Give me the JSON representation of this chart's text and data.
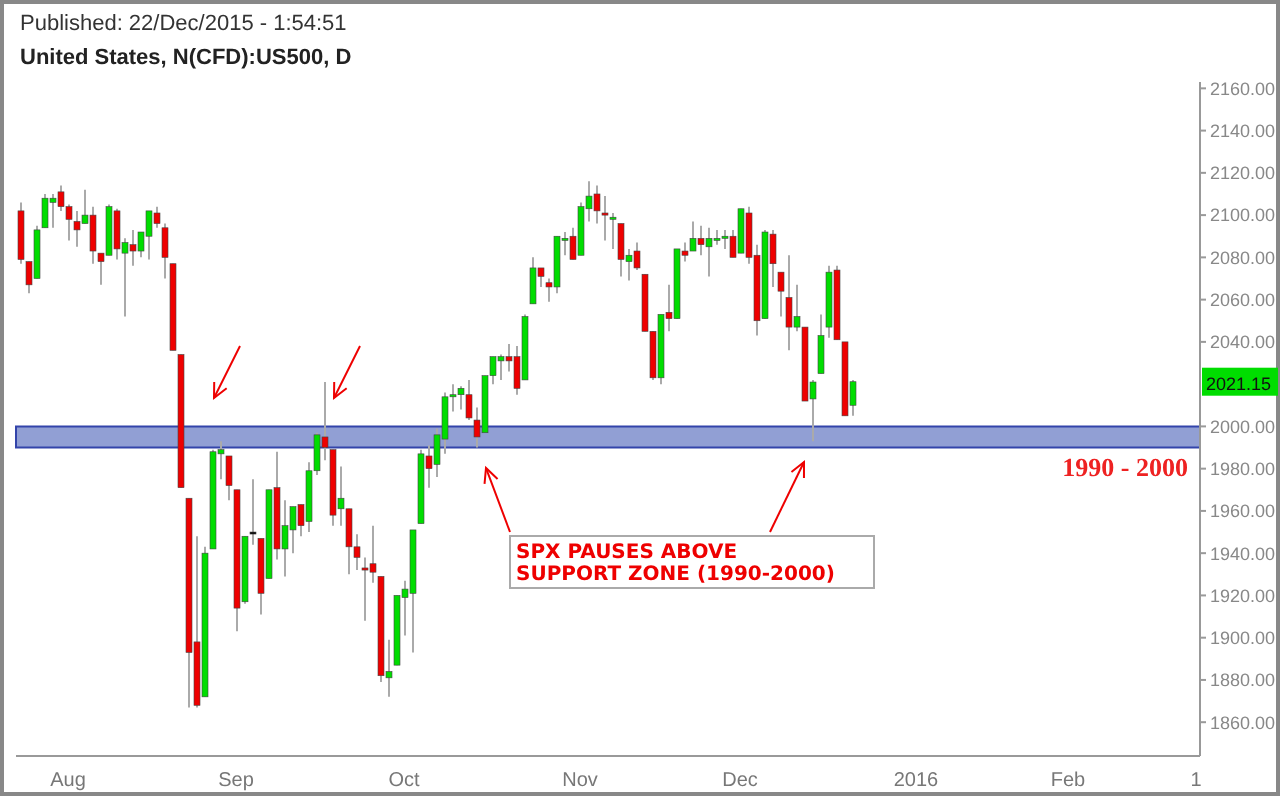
{
  "chart_data": {
    "type": "candlestick",
    "title": "United States, N(CFD):US500, D",
    "categories": [
      null,
      null,
      null,
      null,
      null,
      null,
      "Aug",
      null,
      null,
      null,
      null,
      null,
      null,
      null,
      null,
      null,
      null,
      null,
      null,
      null,
      null,
      null,
      null,
      null,
      null,
      null,
      null,
      "Sep",
      null,
      null,
      null,
      null,
      null,
      null,
      null,
      null,
      null,
      null,
      null,
      null,
      null,
      null,
      null,
      null,
      null,
      null,
      null,
      null,
      "Oct",
      null,
      null,
      null,
      null,
      null,
      null,
      null,
      null,
      null,
      null,
      null,
      null,
      null,
      null,
      null,
      null,
      null,
      null,
      null,
      null,
      null,
      "Nov",
      null,
      null,
      null,
      null,
      null,
      null,
      null,
      null,
      null,
      null,
      null,
      null,
      null,
      null,
      null,
      null,
      null,
      null,
      null,
      "Dec",
      null,
      null,
      null,
      null,
      null,
      null,
      null,
      null,
      null,
      null,
      null,
      null,
      null,
      null,
      null,
      null,
      null,
      null,
      null,
      null,
      null,
      "2016",
      null,
      null,
      null,
      null,
      null,
      null,
      null,
      null,
      null,
      null,
      null,
      null,
      null,
      null,
      null,
      null,
      null,
      null,
      "Feb",
      null,
      null,
      null,
      null,
      null,
      null,
      null,
      null,
      null,
      null,
      null,
      null,
      null,
      null,
      null,
      "1"
    ],
    "ohlc": [
      [
        2102,
        2106,
        2077,
        2079
      ],
      [
        2078,
        2078,
        2063,
        2067
      ],
      [
        2070,
        2095,
        2070,
        2093
      ],
      [
        2094,
        2110,
        2094,
        2108
      ],
      [
        2106,
        2110,
        2094,
        2108
      ],
      [
        2111,
        2114,
        2102,
        2104
      ],
      [
        2104,
        2105,
        2088,
        2098
      ],
      [
        2097,
        2102,
        2085,
        2093
      ],
      [
        2096,
        2112,
        2096,
        2100
      ],
      [
        2100,
        2104,
        2077,
        2083
      ],
      [
        2082,
        2082,
        2067,
        2078
      ],
      [
        2081,
        2105,
        2081,
        2104
      ],
      [
        2102,
        2103,
        2079,
        2084
      ],
      [
        2082,
        2089,
        2052,
        2087
      ],
      [
        2086,
        2093,
        2076,
        2083
      ],
      [
        2083,
        2092,
        2080,
        2092
      ],
      [
        2090,
        2102,
        2079,
        2102
      ],
      [
        2101,
        2104,
        2094,
        2096
      ],
      [
        2094,
        2096,
        2070,
        2080
      ],
      [
        2077,
        2077,
        2036,
        2036
      ],
      [
        2034,
        2034,
        1971,
        1971
      ],
      [
        1966,
        1966,
        1867,
        1893
      ],
      [
        1898,
        1948,
        1867,
        1868
      ],
      [
        1872,
        1943,
        1872,
        1940
      ],
      [
        1942,
        1989,
        1942,
        1988
      ],
      [
        1987,
        1993,
        1975,
        1989
      ],
      [
        1986,
        1986,
        1965,
        1972
      ],
      [
        1970,
        1970,
        1903,
        1914
      ],
      [
        1917,
        1948,
        1916,
        1948
      ],
      [
        1950,
        1975,
        1944,
        1950
      ],
      [
        1947,
        1947,
        1911,
        1921
      ],
      [
        1928,
        1970,
        1928,
        1970
      ],
      [
        1971,
        1988,
        1937,
        1942
      ],
      [
        1942,
        1965,
        1929,
        1953
      ],
      [
        1951,
        1962,
        1940,
        1962
      ],
      [
        1963,
        1963,
        1948,
        1953
      ],
      [
        1955,
        1983,
        1950,
        1979
      ],
      [
        1979,
        1997,
        1977,
        1996
      ],
      [
        1995,
        2021,
        1984,
        1990
      ],
      [
        1989,
        1989,
        1953,
        1958
      ],
      [
        1961,
        1981,
        1953,
        1966
      ],
      [
        1961,
        1961,
        1930,
        1943
      ],
      [
        1943,
        1949,
        1932,
        1938
      ],
      [
        1933,
        1938,
        1908,
        1932
      ],
      [
        1935,
        1953,
        1926,
        1931
      ],
      [
        1929,
        1929,
        1879,
        1882
      ],
      [
        1881,
        1899,
        1872,
        1884
      ],
      [
        1887,
        1920,
        1887,
        1920
      ],
      [
        1919,
        1927,
        1901,
        1923
      ],
      [
        1921,
        1951,
        1893,
        1951
      ],
      [
        1954,
        1989,
        1954,
        1987
      ],
      [
        1986,
        1991,
        1971,
        1980
      ],
      [
        1982,
        1999,
        1976,
        1996
      ],
      [
        1994,
        2016,
        1987,
        2014
      ],
      [
        2014,
        2020,
        2007,
        2015
      ],
      [
        2015,
        2019,
        2008,
        2018
      ],
      [
        2015,
        2022,
        2003,
        2004
      ],
      [
        2003,
        2009,
        1990,
        1995
      ],
      [
        1997,
        2024,
        1997,
        2024
      ],
      [
        2024,
        2033,
        2020,
        2033
      ],
      [
        2031,
        2034,
        2022,
        2033
      ],
      [
        2033,
        2039,
        2026,
        2031
      ],
      [
        2033,
        2038,
        2015,
        2018
      ],
      [
        2022,
        2053,
        2022,
        2052
      ],
      [
        2058,
        2080,
        2058,
        2075
      ],
      [
        2075,
        2075,
        2066,
        2071
      ],
      [
        2068,
        2070,
        2059,
        2066
      ],
      [
        2066,
        2090,
        2063,
        2090
      ],
      [
        2088,
        2092,
        2081,
        2089
      ],
      [
        2090,
        2094,
        2079,
        2079
      ],
      [
        2081,
        2106,
        2081,
        2104
      ],
      [
        2103,
        2116,
        2097,
        2109
      ],
      [
        2110,
        2114,
        2096,
        2102
      ],
      [
        2101,
        2109,
        2088,
        2100
      ],
      [
        2098,
        2101,
        2084,
        2099
      ],
      [
        2096,
        2096,
        2071,
        2079
      ],
      [
        2078,
        2084,
        2069,
        2081
      ],
      [
        2083,
        2087,
        2074,
        2075
      ],
      [
        2072,
        2072,
        2045,
        2045
      ],
      [
        2045,
        2045,
        2022,
        2023
      ],
      [
        2023,
        2053,
        2020,
        2053
      ],
      [
        2054,
        2067,
        2045,
        2051
      ],
      [
        2051,
        2084,
        2051,
        2084
      ],
      [
        2083,
        2087,
        2078,
        2081
      ],
      [
        2083,
        2097,
        2083,
        2089
      ],
      [
        2089,
        2095,
        2081,
        2086
      ],
      [
        2085,
        2094,
        2071,
        2089
      ],
      [
        2088,
        2093,
        2086,
        2089
      ],
      [
        2089,
        2093,
        2084,
        2090
      ],
      [
        2090,
        2093,
        2080,
        2080
      ],
      [
        2082,
        2103,
        2082,
        2103
      ],
      [
        2101,
        2104,
        2077,
        2080
      ],
      [
        2081,
        2086,
        2043,
        2050
      ],
      [
        2051,
        2093,
        2051,
        2092
      ],
      [
        2091,
        2093,
        2066,
        2077
      ],
      [
        2073,
        2073,
        2052,
        2064
      ],
      [
        2061,
        2081,
        2036,
        2047
      ],
      [
        2047,
        2067,
        2045,
        2052
      ],
      [
        2047,
        2047,
        2012,
        2012
      ],
      [
        2013,
        2022,
        1993,
        2021
      ],
      [
        2025,
        2053,
        2025,
        2043
      ],
      [
        2047,
        2076,
        2042,
        2073
      ],
      [
        2074,
        2076,
        2041,
        2041
      ],
      [
        2040,
        2040,
        2005,
        2005
      ],
      [
        2010,
        2022,
        2005,
        2021.15
      ],
      null,
      null,
      null,
      null,
      null,
      null,
      null,
      null,
      null,
      null,
      null,
      null,
      null,
      null,
      null,
      null,
      null,
      null,
      null,
      null,
      null,
      null,
      null,
      null,
      null,
      null,
      null,
      null,
      null,
      null,
      null,
      null,
      null,
      null,
      null,
      null,
      null,
      null,
      null,
      null,
      null,
      null,
      null
    ],
    "colors": [
      "#ee0000",
      "#ee0000",
      "#00dd00",
      "#00dd00",
      "#00dd00",
      "#ee0000",
      "#ee0000",
      "#ee0000",
      "#00dd00",
      "#ee0000",
      "#ee0000",
      "#00dd00",
      "#ee0000",
      "#00dd00",
      "#ee0000",
      "#00dd00",
      "#00dd00",
      "#ee0000",
      "#ee0000",
      "#ee0000",
      "#ee0000",
      "#ee0000",
      "#ee0000",
      "#00dd00",
      "#00dd00",
      "#00dd00",
      "#ee0000",
      "#ee0000",
      "#00dd00",
      "#000000",
      "#ee0000",
      "#00dd00",
      "#ee0000",
      "#00dd00",
      "#00dd00",
      "#ee0000",
      "#00dd00",
      "#00dd00",
      "#ee0000",
      "#ee0000",
      "#00dd00",
      "#ee0000",
      "#ee0000",
      "#ee0000",
      "#ee0000",
      "#ee0000",
      "#00dd00",
      "#00dd00",
      "#00dd00",
      "#00dd00",
      "#00dd00",
      "#ee0000",
      "#00dd00",
      "#00dd00",
      "#00dd00",
      "#00dd00",
      "#ee0000",
      "#ee0000",
      "#00dd00",
      "#00dd00",
      "#00dd00",
      "#ee0000",
      "#ee0000",
      "#00dd00",
      "#00dd00",
      "#ee0000",
      "#ee0000",
      "#00dd00",
      "#00dd00",
      "#ee0000",
      "#00dd00",
      "#00dd00",
      "#ee0000",
      "#ee0000",
      "#00dd00",
      "#ee0000",
      "#00dd00",
      "#ee0000",
      "#ee0000",
      "#ee0000",
      "#00dd00",
      "#ee0000",
      "#00dd00",
      "#ee0000",
      "#00dd00",
      "#ee0000",
      "#00dd00",
      "#00dd00",
      "#00dd00",
      "#ee0000",
      "#00dd00",
      "#ee0000",
      "#ee0000",
      "#00dd00",
      "#ee0000",
      "#ee0000",
      "#ee0000",
      "#00dd00",
      "#ee0000",
      "#00dd00",
      "#00dd00",
      "#00dd00",
      "#ee0000",
      "#ee0000",
      "#00dd00",
      null,
      null,
      null,
      null,
      null,
      null,
      null,
      null,
      null,
      null,
      null,
      null,
      null,
      null,
      null,
      null,
      null,
      null,
      null,
      null,
      null,
      null,
      null,
      null,
      null,
      null,
      null,
      null,
      null,
      null,
      null,
      null,
      null,
      null,
      null,
      null,
      null,
      null,
      null,
      null,
      null,
      null,
      null
    ],
    "ylim": [
      1844,
      2163
    ],
    "yticks": [
      {
        "value": 1860,
        "label": "1860.00"
      },
      {
        "value": 1880,
        "label": "1880.00"
      },
      {
        "value": 1900,
        "label": "1900.00"
      },
      {
        "value": 1920,
        "label": "1920.00"
      },
      {
        "value": 1940,
        "label": "1940.00"
      },
      {
        "value": 1960,
        "label": "1960.00"
      },
      {
        "value": 1980,
        "label": "1980.00"
      },
      {
        "value": 2000,
        "label": "2000.00"
      },
      {
        "value": 2040,
        "label": "2040.00"
      },
      {
        "value": 2060,
        "label": "2060.00"
      },
      {
        "value": 2080,
        "label": "2080.00"
      },
      {
        "value": 2100,
        "label": "2100.00"
      },
      {
        "value": 2120,
        "label": "2120.00"
      },
      {
        "value": 2140,
        "label": "2140.00"
      },
      {
        "value": 2160,
        "label": "2160.00"
      }
    ],
    "bands": [
      {
        "axis": "y",
        "from": 1990,
        "to": 2000,
        "label": "1990 - 2000",
        "color": "#8595cf"
      }
    ],
    "annotations": [
      "Published: 22/Dec/2015 - 1:54:51",
      "SPX PAUSES ABOVE\nSUPPORT ZONE (1990-2000)",
      {
        "text": "2021.15",
        "y": 2021.15
      }
    ],
    "grid": false
  }
}
